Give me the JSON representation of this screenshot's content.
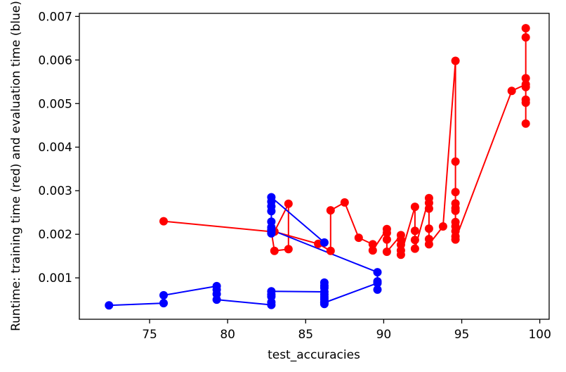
{
  "chart_data": {
    "type": "line",
    "xlabel": "test_accuracies",
    "ylabel": "Runtime: training time (red) and evaluation time (blue)",
    "xlim": [
      70.5,
      100.6
    ],
    "ylim": [
      5e-05,
      0.00707
    ],
    "xticks": [
      75,
      80,
      85,
      90,
      95,
      100
    ],
    "yticks": [
      0.001,
      0.002,
      0.003,
      0.004,
      0.005,
      0.006,
      0.007
    ],
    "xtick_labels": [
      "75",
      "80",
      "85",
      "90",
      "95",
      "100"
    ],
    "ytick_labels": [
      "0.001",
      "0.002",
      "0.003",
      "0.004",
      "0.005",
      "0.006",
      "0.007"
    ],
    "grid": false,
    "series": [
      {
        "color": "#ff0000",
        "marker": "o",
        "points": [
          [
            75.9,
            0.0023
          ],
          [
            82.8,
            0.00206
          ],
          [
            83.0,
            0.00162
          ],
          [
            83.9,
            0.00166
          ],
          [
            83.9,
            0.0027
          ],
          [
            83.0,
            0.00206
          ],
          [
            85.8,
            0.00178
          ],
          [
            86.6,
            0.00162
          ],
          [
            86.6,
            0.00255
          ],
          [
            87.5,
            0.00273
          ],
          [
            88.4,
            0.00192
          ],
          [
            89.3,
            0.00177
          ],
          [
            89.3,
            0.00163
          ],
          [
            90.2,
            0.00212
          ],
          [
            90.2,
            0.00203
          ],
          [
            90.2,
            0.00188
          ],
          [
            90.2,
            0.0016
          ],
          [
            91.1,
            0.00198
          ],
          [
            91.1,
            0.00188
          ],
          [
            91.1,
            0.00176
          ],
          [
            91.1,
            0.00163
          ],
          [
            91.1,
            0.00153
          ],
          [
            92.0,
            0.00263
          ],
          [
            92.0,
            0.00208
          ],
          [
            92.0,
            0.00187
          ],
          [
            92.0,
            0.00167
          ],
          [
            92.9,
            0.00283
          ],
          [
            92.9,
            0.00272
          ],
          [
            92.9,
            0.00259
          ],
          [
            92.9,
            0.00213
          ],
          [
            92.9,
            0.00189
          ],
          [
            92.9,
            0.00177
          ],
          [
            93.8,
            0.00218
          ],
          [
            94.6,
            0.00598
          ],
          [
            94.6,
            0.00367
          ],
          [
            94.6,
            0.00297
          ],
          [
            94.6,
            0.00271
          ],
          [
            94.6,
            0.0026
          ],
          [
            94.6,
            0.00254
          ],
          [
            94.6,
            0.00228
          ],
          [
            94.6,
            0.00218
          ],
          [
            94.6,
            0.00207
          ],
          [
            94.6,
            0.00195
          ],
          [
            94.6,
            0.00188
          ],
          [
            98.2,
            0.00529
          ],
          [
            99.1,
            0.00544
          ],
          [
            99.1,
            0.00558
          ],
          [
            99.1,
            0.00673
          ],
          [
            99.1,
            0.00652
          ],
          [
            99.1,
            0.00538
          ],
          [
            99.1,
            0.00509
          ],
          [
            99.1,
            0.00502
          ],
          [
            99.1,
            0.00454
          ]
        ]
      },
      {
        "color": "#0000ff",
        "marker": "o",
        "points": [
          [
            72.4,
            0.00037
          ],
          [
            75.9,
            0.00042
          ],
          [
            75.9,
            0.0006
          ],
          [
            79.3,
            0.00081
          ],
          [
            79.3,
            0.00073
          ],
          [
            79.3,
            0.00063
          ],
          [
            79.3,
            0.0005
          ],
          [
            82.8,
            0.00038
          ],
          [
            82.8,
            0.00044
          ],
          [
            82.8,
            0.00057
          ],
          [
            82.8,
            0.00062
          ],
          [
            82.8,
            0.00069
          ],
          [
            86.2,
            0.00068
          ],
          [
            86.2,
            0.00089
          ],
          [
            86.2,
            0.00082
          ],
          [
            86.2,
            0.00077
          ],
          [
            86.2,
            0.00062
          ],
          [
            86.2,
            0.00056
          ],
          [
            86.2,
            0.00051
          ],
          [
            86.2,
            0.00045
          ],
          [
            86.2,
            0.0004
          ],
          [
            86.2,
            0.00043
          ],
          [
            89.6,
            0.00088
          ],
          [
            89.6,
            0.00073
          ],
          [
            89.6,
            0.00092
          ],
          [
            89.6,
            0.00113
          ],
          [
            82.8,
            0.0021
          ],
          [
            82.8,
            0.00202
          ],
          [
            82.8,
            0.00208
          ],
          [
            82.8,
            0.00216
          ],
          [
            82.8,
            0.00229
          ],
          [
            82.8,
            0.00253
          ],
          [
            82.8,
            0.00264
          ],
          [
            82.8,
            0.00275
          ],
          [
            82.8,
            0.00285
          ],
          [
            86.2,
            0.00181
          ]
        ]
      }
    ]
  }
}
